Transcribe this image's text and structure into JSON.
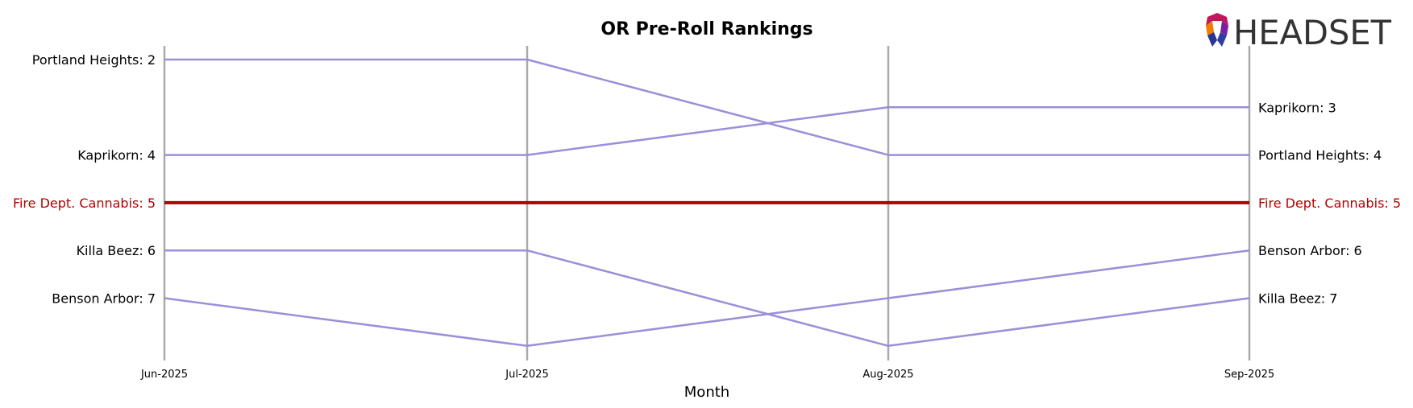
{
  "logo": {
    "text": "HEADSET"
  },
  "chart_data": {
    "type": "line",
    "title": "OR Pre-Roll Rankings",
    "xlabel": "Month",
    "ylabel": "",
    "categories": [
      "Jun-2025",
      "Jul-2025",
      "Aug-2025",
      "Sep-2025"
    ],
    "y_inverted": true,
    "grid": "vertical lines at each month",
    "series": [
      {
        "name": "Portland Heights",
        "values": [
          2,
          2,
          4,
          4
        ],
        "highlight": false
      },
      {
        "name": "Kaprikorn",
        "values": [
          4,
          4,
          3,
          3
        ],
        "highlight": false
      },
      {
        "name": "Fire Dept. Cannabis",
        "values": [
          5,
          5,
          5,
          5
        ],
        "highlight": true
      },
      {
        "name": "Killa Beez",
        "values": [
          6,
          6,
          8,
          7
        ],
        "highlight": false
      },
      {
        "name": "Benson Arbor",
        "values": [
          7,
          8,
          7,
          6
        ],
        "highlight": false
      }
    ],
    "colors": {
      "normal": "#9b8fd9",
      "highlight": "#b30000",
      "grid": "#aaaaaa"
    }
  }
}
